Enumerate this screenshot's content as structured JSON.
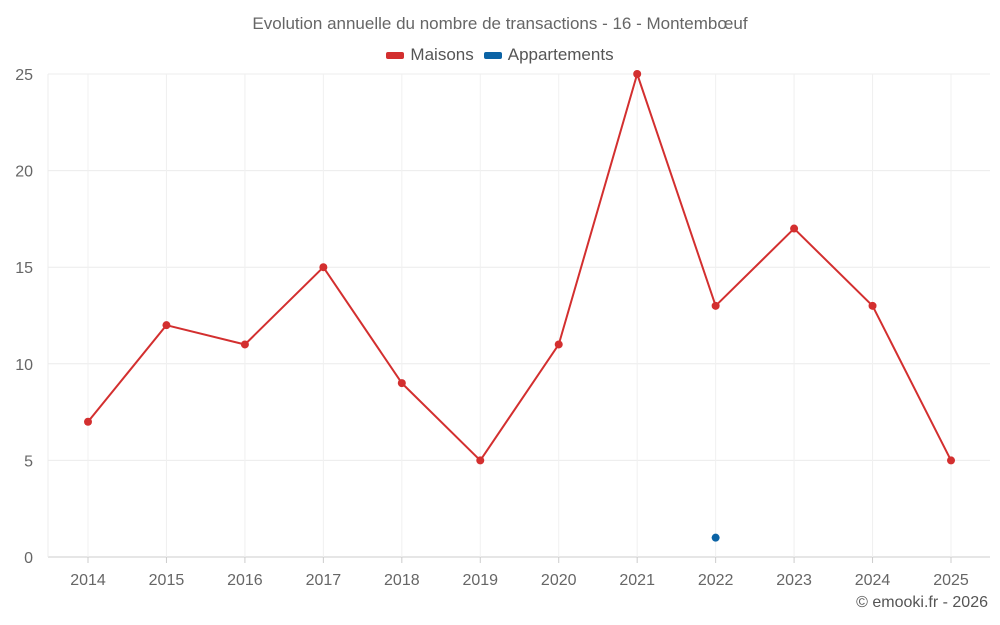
{
  "chart_data": {
    "type": "line",
    "title": "Evolution annuelle du nombre de transactions - 16 - Montembœuf",
    "xlabel": "",
    "ylabel": "",
    "categories": [
      "2014",
      "2015",
      "2016",
      "2017",
      "2018",
      "2019",
      "2020",
      "2021",
      "2022",
      "2023",
      "2024",
      "2025"
    ],
    "ylim": [
      0,
      25
    ],
    "yticks": [
      0,
      5,
      10,
      15,
      20,
      25
    ],
    "grid": true,
    "legend_position": "top-center",
    "series": [
      {
        "name": "Maisons",
        "color": "#d32f2f",
        "values": [
          7,
          12,
          11,
          15,
          9,
          5,
          11,
          25,
          13,
          17,
          13,
          5
        ]
      },
      {
        "name": "Appartements",
        "color": "#0b63a5",
        "values": [
          null,
          null,
          null,
          null,
          null,
          null,
          null,
          null,
          1,
          null,
          null,
          null
        ]
      }
    ]
  },
  "footer": {
    "watermark": "© emooki.fr - 2026"
  }
}
